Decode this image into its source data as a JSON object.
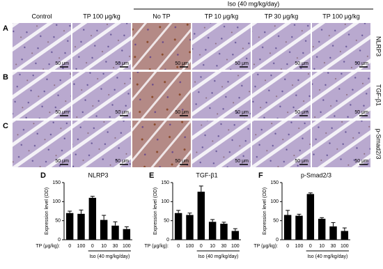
{
  "panel_labels": [
    "A",
    "B",
    "C"
  ],
  "group_header": "Iso (40 mg/kg/day)",
  "columns": [
    "Control",
    "TP 100 μg/kg",
    "No TP",
    "TP 10 μg/kg",
    "TP 30 μg/kg",
    "TP 100 μg/kg"
  ],
  "rows": [
    "NLRP3",
    "TGF-β1",
    "p-Smad2/3"
  ],
  "scale_bar": "50 μm",
  "chart_data": [
    {
      "type": "bar",
      "panel": "D",
      "title": "NLRP3",
      "y_label": "Expression level (OD)",
      "x_label": "TP (μg/kg):",
      "group_label": "Iso (40 mg/kg/day)",
      "categories": [
        "0",
        "100",
        "0",
        "10",
        "30",
        "100"
      ],
      "values": [
        70,
        68,
        110,
        52,
        37,
        28
      ],
      "errors": [
        5,
        10,
        4,
        12,
        10,
        6
      ],
      "color": "#000000",
      "ylim": [
        0,
        150
      ],
      "yticks": [
        0,
        50,
        100,
        150
      ]
    },
    {
      "type": "bar",
      "panel": "E",
      "title": "TGF-β1",
      "y_label": "Expression level (OD)",
      "x_label": "TP (μg/kg):",
      "group_label": "Iso (40 mg/kg/day)",
      "categories": [
        "0",
        "100",
        "0",
        "10",
        "30",
        "100"
      ],
      "values": [
        70,
        65,
        126,
        47,
        42,
        23
      ],
      "errors": [
        7,
        5,
        15,
        6,
        4,
        6
      ],
      "color": "#000000",
      "ylim": [
        0,
        150
      ],
      "yticks": [
        0,
        50,
        100,
        150
      ]
    },
    {
      "type": "bar",
      "panel": "F",
      "title": "p-Smad2/3",
      "y_label": "Expression level (OD)",
      "x_label": "TP (μg/kg):",
      "group_label": "Iso (40 mg/kg/day)",
      "categories": [
        "0",
        "100",
        "0",
        "10",
        "30",
        "100"
      ],
      "values": [
        65,
        63,
        120,
        55,
        35,
        23
      ],
      "errors": [
        12,
        4,
        3,
        3,
        10,
        8
      ],
      "color": "#000000",
      "ylim": [
        0,
        150
      ],
      "yticks": [
        0,
        50,
        100,
        150
      ]
    }
  ]
}
